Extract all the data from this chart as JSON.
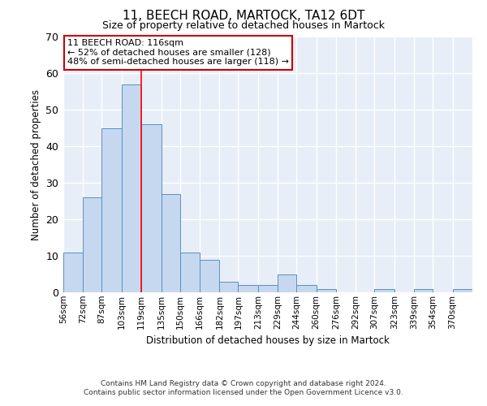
{
  "title_line1": "11, BEECH ROAD, MARTOCK, TA12 6DT",
  "title_line2": "Size of property relative to detached houses in Martock",
  "xlabel": "Distribution of detached houses by size in Martock",
  "ylabel": "Number of detached properties",
  "bin_labels": [
    "56sqm",
    "72sqm",
    "87sqm",
    "103sqm",
    "119sqm",
    "135sqm",
    "150sqm",
    "166sqm",
    "182sqm",
    "197sqm",
    "213sqm",
    "229sqm",
    "244sqm",
    "260sqm",
    "276sqm",
    "292sqm",
    "307sqm",
    "323sqm",
    "339sqm",
    "354sqm",
    "370sqm"
  ],
  "bin_edges": [
    56,
    72,
    87,
    103,
    119,
    135,
    150,
    166,
    182,
    197,
    213,
    229,
    244,
    260,
    276,
    292,
    307,
    323,
    339,
    354,
    370
  ],
  "values": [
    11,
    26,
    45,
    57,
    46,
    27,
    11,
    9,
    3,
    2,
    2,
    5,
    2,
    1,
    0,
    0,
    1,
    0,
    1,
    0,
    1
  ],
  "bar_color": "#c5d8f0",
  "bar_edge_color": "#5a8fc2",
  "red_line_x": 119,
  "ylim": [
    0,
    70
  ],
  "yticks": [
    0,
    10,
    20,
    30,
    40,
    50,
    60,
    70
  ],
  "annotation_text": "11 BEECH ROAD: 116sqm\n← 52% of detached houses are smaller (128)\n48% of semi-detached houses are larger (118) →",
  "annotation_box_color": "#ffffff",
  "annotation_box_edge": "#cc0000",
  "plot_bg_color": "#e8eef8",
  "fig_bg_color": "#ffffff",
  "grid_color": "#ffffff",
  "footer_line1": "Contains HM Land Registry data © Crown copyright and database right 2024.",
  "footer_line2": "Contains public sector information licensed under the Open Government Licence v3.0."
}
